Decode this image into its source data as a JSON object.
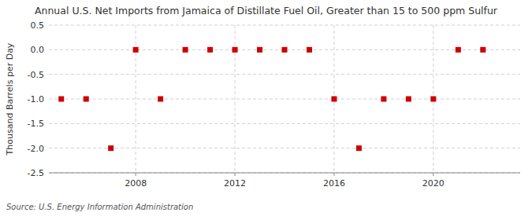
{
  "chart_data": {
    "type": "scatter",
    "title": "Annual U.S. Net Imports from Jamaica of Distillate Fuel Oil, Greater than 15 to 500 ppm Sulfur",
    "y_label": "Thousand Barrels per Day",
    "annotations": [
      "Source: U.S. Energy Information Administration"
    ],
    "x": [
      2005,
      2006,
      2007,
      2008,
      2009,
      2010,
      2011,
      2012,
      2013,
      2014,
      2015,
      2016,
      2017,
      2018,
      2019,
      2020,
      2021,
      2022
    ],
    "values": [
      -1.0,
      -1.0,
      -2.0,
      0.0,
      -1.0,
      0.0,
      0.0,
      0.0,
      0.0,
      0.0,
      0.0,
      -1.0,
      -2.0,
      -1.0,
      -1.0,
      -1.0,
      0.0,
      0.0
    ],
    "color": "#cc0000",
    "marker": "square",
    "xlim": [
      2004.5,
      2023.5
    ],
    "xticks": [
      2008,
      2012,
      2016,
      2020
    ],
    "ylim": [
      -2.5,
      0.5
    ],
    "yticks": [
      0.5,
      {
        "value": 0,
        "label": "0.0"
      },
      -0.5,
      {
        "value": -1,
        "label": "-1.0"
      },
      -1.5,
      {
        "value": -2,
        "label": "-2.0"
      },
      -2.5
    ],
    "grid": true
  }
}
